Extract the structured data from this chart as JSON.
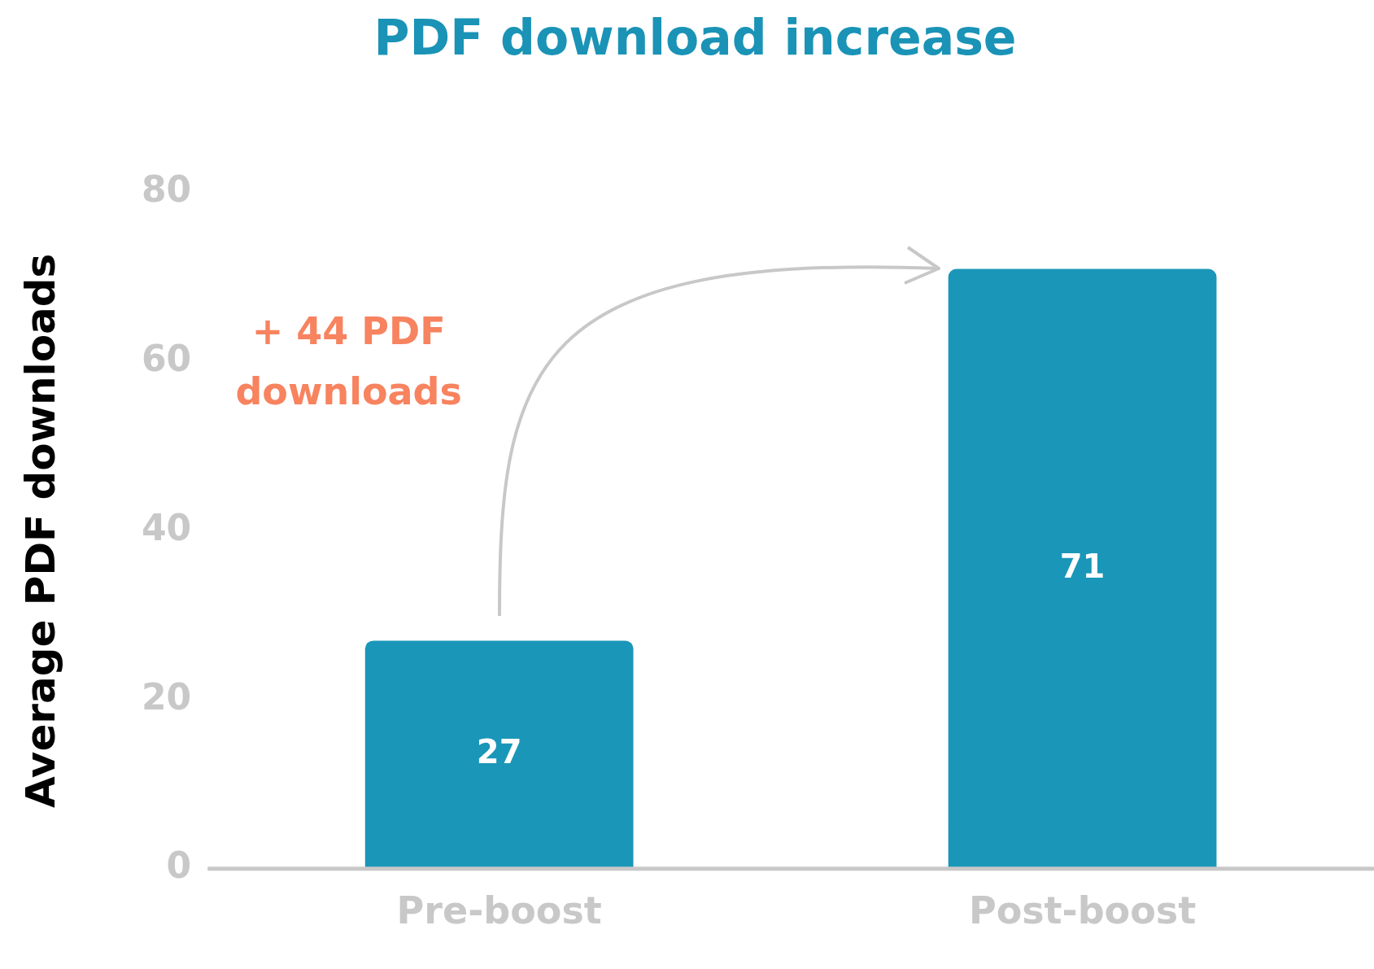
{
  "chart_data": {
    "type": "bar",
    "title": "PDF download increase",
    "ylabel": "Average PDF downloads",
    "categories": [
      "Pre-boost",
      "Post-boost"
    ],
    "values": [
      27,
      71
    ],
    "color": "#1a96b8",
    "ylim": [
      0,
      80
    ],
    "yticks": [
      0,
      20,
      40,
      60,
      80
    ],
    "grid": false,
    "data_labels": true,
    "annotations": [
      "+ 44 PDF downloads"
    ]
  }
}
